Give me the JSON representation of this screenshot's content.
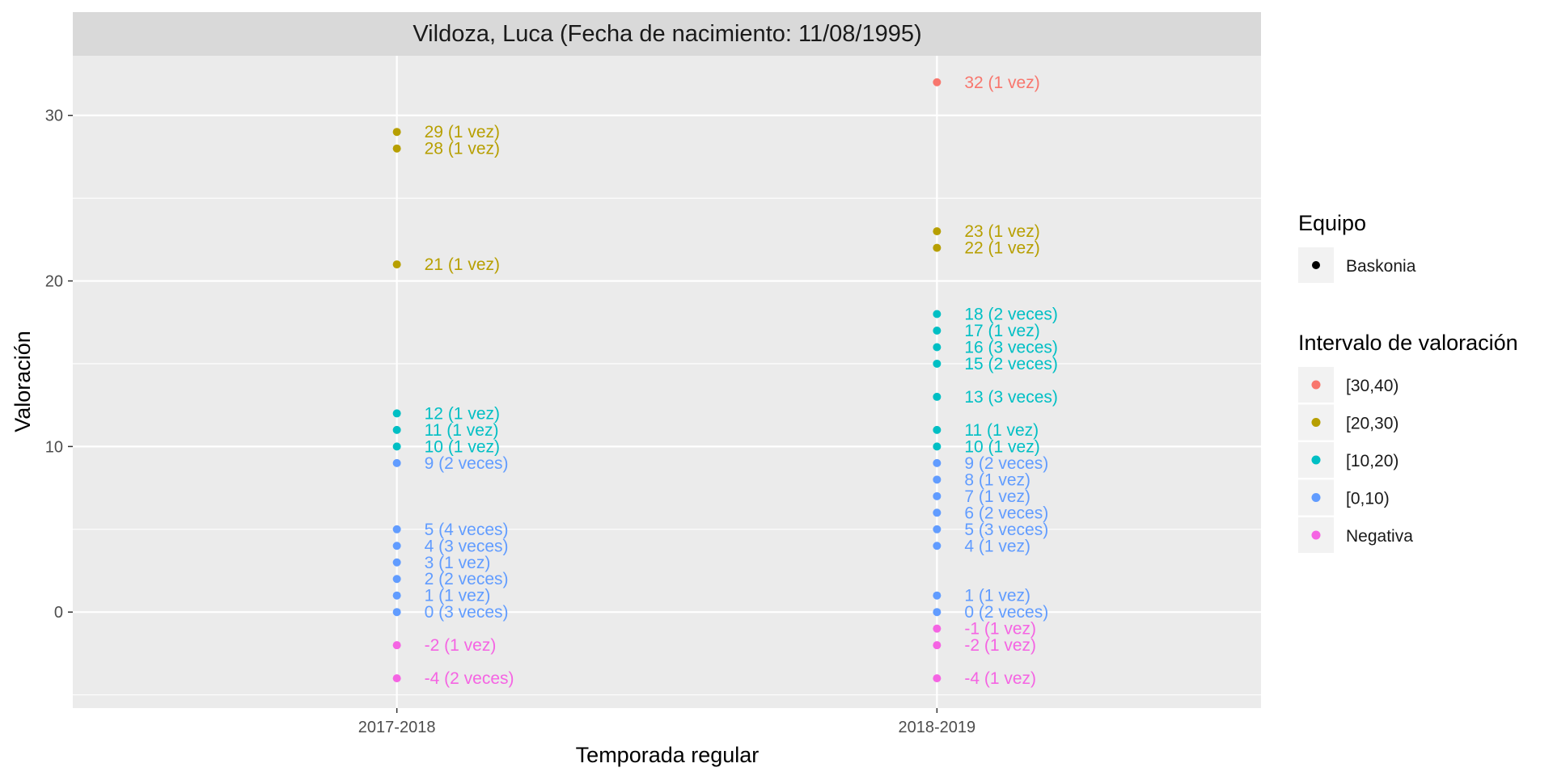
{
  "chart_data": {
    "type": "scatter",
    "title": "Vildoza, Luca (Fecha de nacimiento: 11/08/1995)",
    "xlabel": "Temporada regular",
    "ylabel": "Valoración",
    "categories": [
      "2017-2018",
      "2018-2019"
    ],
    "ylim": [
      -5.8,
      33.6
    ],
    "y_ticks": [
      0,
      10,
      20,
      30
    ],
    "y_tick_labels": [
      "0",
      "10",
      "20",
      "30"
    ],
    "grid": true,
    "legend_position": "right",
    "legend": {
      "equipo_title": "Equipo",
      "equipo_items": [
        "Baskonia"
      ],
      "intervalo_title": "Intervalo de valoración",
      "intervalo_items": [
        {
          "label": "[30,40)",
          "color": "#F8766D"
        },
        {
          "label": "[20,30)",
          "color": "#B79F00"
        },
        {
          "label": "[10,20)",
          "color": "#00BFC4"
        },
        {
          "label": "[0,10)",
          "color": "#619CFF"
        },
        {
          "label": "Negativa",
          "color": "#F564E3"
        }
      ]
    },
    "series": [
      {
        "category": "2017-2018",
        "points": [
          {
            "y": 29,
            "label": "29 (1 vez)",
            "interval": "[20,30)"
          },
          {
            "y": 28,
            "label": "28 (1 vez)",
            "interval": "[20,30)"
          },
          {
            "y": 21,
            "label": "21 (1 vez)",
            "interval": "[20,30)"
          },
          {
            "y": 12,
            "label": "12 (1 vez)",
            "interval": "[10,20)"
          },
          {
            "y": 11,
            "label": "11 (1 vez)",
            "interval": "[10,20)"
          },
          {
            "y": 10,
            "label": "10 (1 vez)",
            "interval": "[10,20)"
          },
          {
            "y": 9,
            "label": "9 (2 veces)",
            "interval": "[0,10)"
          },
          {
            "y": 5,
            "label": "5 (4 veces)",
            "interval": "[0,10)"
          },
          {
            "y": 4,
            "label": "4 (3 veces)",
            "interval": "[0,10)"
          },
          {
            "y": 3,
            "label": "3 (1 vez)",
            "interval": "[0,10)"
          },
          {
            "y": 2,
            "label": "2 (2 veces)",
            "interval": "[0,10)"
          },
          {
            "y": 1,
            "label": "1 (1 vez)",
            "interval": "[0,10)"
          },
          {
            "y": 0,
            "label": "0 (3 veces)",
            "interval": "[0,10)"
          },
          {
            "y": -2,
            "label": "-2 (1 vez)",
            "interval": "Negativa"
          },
          {
            "y": -4,
            "label": "-4 (2 veces)",
            "interval": "Negativa"
          }
        ]
      },
      {
        "category": "2018-2019",
        "points": [
          {
            "y": 32,
            "label": "32 (1 vez)",
            "interval": "[30,40)"
          },
          {
            "y": 23,
            "label": "23 (1 vez)",
            "interval": "[20,30)"
          },
          {
            "y": 22,
            "label": "22 (1 vez)",
            "interval": "[20,30)"
          },
          {
            "y": 18,
            "label": "18 (2 veces)",
            "interval": "[10,20)"
          },
          {
            "y": 17,
            "label": "17 (1 vez)",
            "interval": "[10,20)"
          },
          {
            "y": 16,
            "label": "16 (3 veces)",
            "interval": "[10,20)"
          },
          {
            "y": 15,
            "label": "15 (2 veces)",
            "interval": "[10,20)"
          },
          {
            "y": 13,
            "label": "13 (3 veces)",
            "interval": "[10,20)"
          },
          {
            "y": 11,
            "label": "11 (1 vez)",
            "interval": "[10,20)"
          },
          {
            "y": 10,
            "label": "10 (1 vez)",
            "interval": "[10,20)"
          },
          {
            "y": 9,
            "label": "9 (2 veces)",
            "interval": "[0,10)"
          },
          {
            "y": 8,
            "label": "8 (1 vez)",
            "interval": "[0,10)"
          },
          {
            "y": 7,
            "label": "7 (1 vez)",
            "interval": "[0,10)"
          },
          {
            "y": 6,
            "label": "6 (2 veces)",
            "interval": "[0,10)"
          },
          {
            "y": 5,
            "label": "5 (3 veces)",
            "interval": "[0,10)"
          },
          {
            "y": 4,
            "label": "4 (1 vez)",
            "interval": "[0,10)"
          },
          {
            "y": 1,
            "label": "1 (1 vez)",
            "interval": "[0,10)"
          },
          {
            "y": 0,
            "label": "0 (2 veces)",
            "interval": "[0,10)"
          },
          {
            "y": -1,
            "label": "-1 (1 vez)",
            "interval": "Negativa"
          },
          {
            "y": -2,
            "label": "-2 (1 vez)",
            "interval": "Negativa"
          },
          {
            "y": -4,
            "label": "-4 (1 vez)",
            "interval": "Negativa"
          }
        ]
      }
    ]
  }
}
